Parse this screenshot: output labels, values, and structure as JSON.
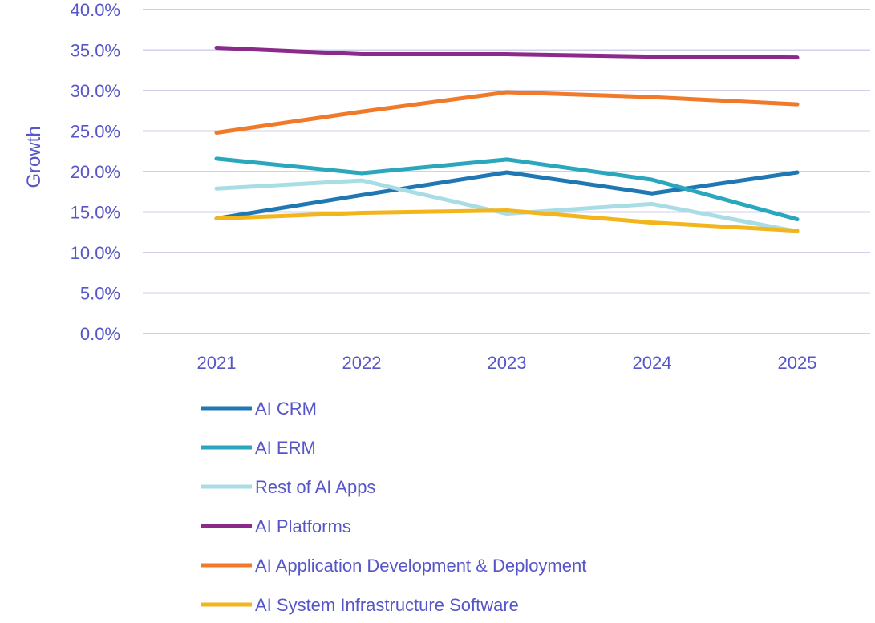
{
  "chart_data": {
    "type": "line",
    "title": "",
    "xlabel": "",
    "ylabel": "Growth",
    "categories": [
      "2021",
      "2022",
      "2023",
      "2024",
      "2025"
    ],
    "ylim": [
      0,
      40
    ],
    "y_ticks": [
      "0.0%",
      "5.0%",
      "10.0%",
      "15.0%",
      "20.0%",
      "25.0%",
      "30.0%",
      "35.0%",
      "40.0%"
    ],
    "grid": true,
    "legend_position": "bottom",
    "series": [
      {
        "name": "AI CRM",
        "color": "#1f77b4",
        "values": [
          14.2,
          17.1,
          19.9,
          17.3,
          19.9
        ]
      },
      {
        "name": "AI ERM",
        "color": "#2aa7bd",
        "values": [
          21.6,
          19.8,
          21.5,
          19.0,
          14.1
        ]
      },
      {
        "name": "Rest of AI Apps",
        "color": "#a9dde6",
        "values": [
          17.9,
          18.9,
          14.8,
          16.0,
          12.6
        ]
      },
      {
        "name": "AI Platforms",
        "color": "#8b2a8b",
        "values": [
          35.3,
          34.5,
          34.5,
          34.2,
          34.1
        ]
      },
      {
        "name": "AI Application Development & Deployment",
        "color": "#f07a2a",
        "values": [
          24.8,
          27.4,
          29.8,
          29.2,
          28.3
        ]
      },
      {
        "name": "AI System Infrastructure Software",
        "color": "#f2b51c",
        "values": [
          14.2,
          14.9,
          15.2,
          13.7,
          12.7
        ]
      }
    ]
  },
  "colors": {
    "text": "#5656c8",
    "grid": "#cfcfee"
  }
}
